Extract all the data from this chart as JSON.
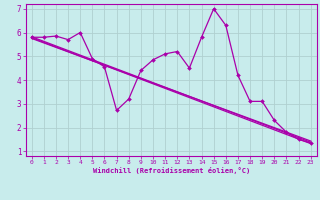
{
  "xlabel": "Windchill (Refroidissement éolien,°C)",
  "bg_color": "#c8ecec",
  "grid_color": "#b0d0d0",
  "line_color": "#aa00aa",
  "marker_color": "#aa00aa",
  "xlim": [
    -0.5,
    23.5
  ],
  "ylim": [
    0.8,
    7.2
  ],
  "xticks": [
    0,
    1,
    2,
    3,
    4,
    5,
    6,
    7,
    8,
    9,
    10,
    11,
    12,
    13,
    14,
    15,
    16,
    17,
    18,
    19,
    20,
    21,
    22,
    23
  ],
  "yticks": [
    1,
    2,
    3,
    4,
    5,
    6,
    7
  ],
  "series1_x": [
    0,
    1,
    2,
    3,
    4,
    5,
    6,
    7,
    8,
    9,
    10,
    11,
    12,
    13,
    14,
    15,
    16,
    17,
    18,
    19,
    20,
    21,
    22,
    23
  ],
  "series1_y": [
    5.8,
    5.8,
    5.85,
    5.7,
    6.0,
    4.9,
    4.55,
    2.72,
    3.2,
    4.4,
    4.85,
    5.1,
    5.2,
    4.5,
    5.8,
    7.0,
    6.3,
    4.2,
    3.1,
    3.1,
    2.3,
    1.8,
    1.5,
    1.35
  ],
  "trend1_x": [
    0,
    23
  ],
  "trend1_y": [
    5.82,
    1.38
  ],
  "trend2_x": [
    0,
    23
  ],
  "trend2_y": [
    5.78,
    1.32
  ],
  "trend3_x": [
    0,
    23
  ],
  "trend3_y": [
    5.75,
    1.43
  ]
}
